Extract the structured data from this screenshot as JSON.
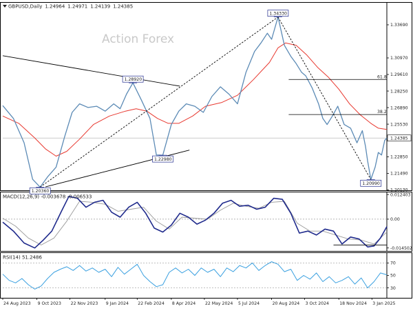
{
  "chart_data": [
    {
      "type": "line",
      "panel": "price",
      "title": "GBPUSD,Daily",
      "ohlc": {
        "open": "1.24964",
        "high": "1.24971",
        "low": "1.24139",
        "close": "1.24385"
      },
      "watermark": "Action Forex",
      "last_price_label": "1.24385",
      "ylim": [
        1.201,
        1.355
      ],
      "y_ticks": [
        "1.33690",
        "1.30970",
        "1.29610",
        "1.28250",
        "1.26890",
        "1.25530",
        "1.22850",
        "1.21490",
        "1.20130"
      ],
      "y_tick_values": [
        1.3369,
        1.3097,
        1.2961,
        1.2825,
        1.2689,
        1.2553,
        1.2285,
        1.2149,
        1.2013
      ],
      "x_tick_labels": [
        "24 Aug 2023",
        "9 Oct 2023",
        "22 Nov 2023",
        "9 Jan 2024",
        "22 Feb 2024",
        "8 Apr 2024",
        "22 May 2024",
        "5 Jul 2024",
        "20 Aug 2024",
        "3 Oct 2024",
        "18 Nov 2024",
        "3 Jan 2025"
      ],
      "x_tick_index": [
        0,
        32,
        63,
        96,
        126,
        158,
        189,
        220,
        252,
        283,
        315,
        346
      ],
      "n_bars": 361,
      "series": [
        {
          "role": "price",
          "color": "#5b8ab5",
          "x": [
            0,
            10,
            20,
            28,
            35,
            42,
            50,
            58,
            65,
            72,
            80,
            88,
            96,
            104,
            110,
            116,
            122,
            130,
            138,
            144,
            150,
            158,
            165,
            172,
            180,
            188,
            196,
            204,
            212,
            220,
            228,
            236,
            242,
            248,
            252,
            258,
            264,
            270,
            275,
            280,
            284,
            290,
            296,
            300,
            304,
            309,
            314,
            320,
            326,
            332,
            337,
            340,
            342,
            345,
            349,
            352,
            355,
            358,
            360
          ],
          "y": [
            1.2705,
            1.26,
            1.24,
            1.21,
            1.2036,
            1.212,
            1.22,
            1.245,
            1.265,
            1.272,
            1.269,
            1.27,
            1.266,
            1.272,
            1.268,
            1.28,
            1.2892,
            1.275,
            1.26,
            1.23,
            1.2298,
            1.255,
            1.266,
            1.272,
            1.27,
            1.265,
            1.278,
            1.286,
            1.28,
            1.272,
            1.298,
            1.315,
            1.322,
            1.33,
            1.325,
            1.3433,
            1.32,
            1.311,
            1.305,
            1.298,
            1.295,
            1.285,
            1.272,
            1.26,
            1.255,
            1.262,
            1.27,
            1.255,
            1.252,
            1.24,
            1.25,
            1.237,
            1.225,
            1.2099,
            1.22,
            1.232,
            1.23,
            1.242,
            1.2439
          ]
        },
        {
          "role": "moving-average",
          "color": "#e8382f",
          "x": [
            0,
            15,
            30,
            40,
            50,
            60,
            72,
            85,
            100,
            115,
            125,
            135,
            145,
            155,
            165,
            178,
            190,
            205,
            220,
            235,
            250,
            258,
            265,
            275,
            285,
            295,
            305,
            315,
            325,
            335,
            345,
            352,
            360
          ],
          "y": [
            1.262,
            1.256,
            1.244,
            1.235,
            1.229,
            1.233,
            1.243,
            1.255,
            1.262,
            1.266,
            1.268,
            1.266,
            1.26,
            1.256,
            1.256,
            1.262,
            1.27,
            1.273,
            1.279,
            1.292,
            1.306,
            1.318,
            1.322,
            1.32,
            1.312,
            1.302,
            1.294,
            1.284,
            1.272,
            1.263,
            1.256,
            1.252,
            1.251
          ]
        }
      ],
      "level_labels": [
        {
          "text": "1.34330",
          "x": 258,
          "y": 1.3433,
          "anchor": "above"
        },
        {
          "text": "1.28920",
          "x": 122,
          "y": 1.2892,
          "anchor": "above"
        },
        {
          "text": "1.22980",
          "x": 150,
          "y": 1.2298,
          "anchor": "below"
        },
        {
          "text": "1.20360",
          "x": 35,
          "y": 1.2036,
          "anchor": "below"
        },
        {
          "text": "1.20990",
          "x": 345,
          "y": 1.2099,
          "anchor": "below"
        }
      ],
      "fib_levels": [
        {
          "label": "61.8",
          "y": 1.292
        },
        {
          "label": "38.2",
          "y": 1.2632
        }
      ],
      "trendlines": [
        {
          "style": "solid",
          "from": [
            0,
            1.3115
          ],
          "to": [
            166,
            1.2865
          ]
        },
        {
          "style": "solid",
          "from": [
            40,
            1.2038
          ],
          "to": [
            175,
            1.234
          ]
        },
        {
          "style": "dashed",
          "from": [
            35,
            1.2036
          ],
          "to": [
            258,
            1.3433
          ]
        },
        {
          "style": "dashed",
          "from": [
            258,
            1.3433
          ],
          "to": [
            345,
            1.2099
          ]
        }
      ]
    },
    {
      "type": "line",
      "panel": "macd",
      "title": "MACD(12,26,9) -0.003678 -0.006533",
      "ylim": [
        -0.016,
        0.0135
      ],
      "y_ticks": [
        "0.012403",
        "0.00",
        "-0.014502"
      ],
      "y_tick_values": [
        0.012403,
        0.0,
        -0.014502
      ],
      "series": [
        {
          "name": "MACD",
          "color": "#1f2a8c",
          "x": [
            0,
            10,
            20,
            30,
            38,
            46,
            55,
            62,
            70,
            78,
            86,
            94,
            102,
            110,
            118,
            126,
            134,
            142,
            150,
            158,
            166,
            174,
            182,
            190,
            198,
            206,
            214,
            222,
            230,
            238,
            246,
            254,
            262,
            270,
            278,
            286,
            294,
            302,
            310,
            318,
            326,
            334,
            342,
            348,
            354,
            360
          ],
          "y": [
            -0.0015,
            -0.006,
            -0.012,
            -0.0145,
            -0.0105,
            -0.006,
            0.004,
            0.0115,
            0.0105,
            0.006,
            0.0085,
            0.0095,
            0.0035,
            0.001,
            0.006,
            0.0085,
            0.003,
            -0.0045,
            -0.0065,
            -0.003,
            0.003,
            0.001,
            -0.0025,
            -0.0005,
            0.003,
            0.008,
            0.0095,
            0.0065,
            0.007,
            0.005,
            0.006,
            0.0105,
            0.01,
            0.003,
            -0.007,
            -0.006,
            -0.008,
            -0.005,
            -0.006,
            -0.0125,
            -0.009,
            -0.01,
            -0.014,
            -0.0135,
            -0.0095,
            -0.0037
          ]
        },
        {
          "name": "Signal",
          "color": "#9a9a9a",
          "x": [
            0,
            12,
            24,
            36,
            48,
            60,
            72,
            84,
            96,
            108,
            120,
            132,
            144,
            156,
            168,
            180,
            192,
            204,
            216,
            228,
            240,
            252,
            264,
            276,
            288,
            300,
            312,
            324,
            336,
            348,
            360
          ],
          "y": [
            0.0005,
            -0.0035,
            -0.0095,
            -0.013,
            -0.0095,
            -0.001,
            0.009,
            0.0085,
            0.0075,
            0.004,
            0.005,
            0.006,
            -0.001,
            -0.005,
            0.001,
            0.0005,
            0.0,
            0.0045,
            0.008,
            0.0065,
            0.0055,
            0.0085,
            0.009,
            -0.002,
            -0.006,
            -0.006,
            -0.008,
            -0.01,
            -0.0105,
            -0.0125,
            -0.0065
          ]
        }
      ],
      "trendlines": [
        {
          "style": "solid",
          "from": [
            310,
            -0.013
          ],
          "to": [
            360,
            -0.013
          ]
        }
      ]
    },
    {
      "type": "line",
      "panel": "rsi",
      "title": "RSI(14) 51.2486",
      "ylim": [
        14,
        86
      ],
      "y_ticks": [
        "70",
        "50",
        "30"
      ],
      "y_tick_values": [
        70,
        50,
        30
      ],
      "series": [
        {
          "name": "RSI",
          "color": "#3aa0e0",
          "x": [
            0,
            6,
            12,
            18,
            24,
            30,
            36,
            42,
            48,
            54,
            60,
            66,
            72,
            78,
            84,
            90,
            96,
            102,
            108,
            114,
            120,
            126,
            132,
            138,
            144,
            150,
            156,
            162,
            168,
            174,
            180,
            186,
            192,
            198,
            204,
            210,
            216,
            222,
            228,
            234,
            240,
            246,
            252,
            258,
            264,
            270,
            276,
            282,
            288,
            294,
            300,
            306,
            312,
            318,
            324,
            330,
            336,
            342,
            348,
            354,
            360
          ],
          "y": [
            52,
            42,
            38,
            45,
            35,
            28,
            33,
            45,
            55,
            60,
            64,
            58,
            66,
            57,
            62,
            55,
            60,
            48,
            63,
            52,
            60,
            68,
            50,
            40,
            32,
            35,
            55,
            62,
            54,
            60,
            50,
            62,
            55,
            60,
            48,
            62,
            56,
            66,
            62,
            70,
            58,
            66,
            72,
            68,
            56,
            60,
            42,
            50,
            44,
            54,
            40,
            48,
            38,
            42,
            48,
            36,
            46,
            30,
            40,
            54,
            51
          ]
        }
      ]
    }
  ]
}
